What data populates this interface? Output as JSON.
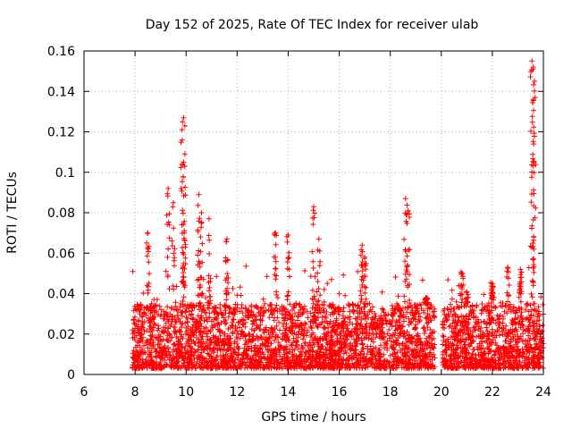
{
  "chart_data": {
    "type": "scatter",
    "title": "Day 152 of 2025, Rate Of TEC Index for receiver ulab",
    "xlabel": "GPS time / hours",
    "ylabel": "ROTI / TECUs",
    "xlim": [
      6,
      24
    ],
    "ylim": [
      0,
      0.16
    ],
    "xticks": [
      "6",
      "8",
      "10",
      "12",
      "14",
      "16",
      "18",
      "20",
      "22",
      "24"
    ],
    "yticks": [
      "0",
      "0.02",
      "0.04",
      "0.06",
      "0.08",
      "0.1",
      "0.12",
      "0.14",
      "0.16"
    ],
    "grid": true,
    "marker": "+",
    "color": "#ff0000",
    "series": [
      {
        "name": "ROTI",
        "data_range": [
          7.9,
          24.0
        ],
        "base_band": [
          0.003,
          0.035
        ],
        "peaks": [
          [
            8.5,
            0.07
          ],
          [
            9.3,
            0.092
          ],
          [
            9.5,
            0.085
          ],
          [
            9.9,
            0.127
          ],
          [
            9.95,
            0.123
          ],
          [
            9.85,
            0.116
          ],
          [
            9.9,
            0.105
          ],
          [
            10.5,
            0.089
          ],
          [
            10.6,
            0.08
          ],
          [
            10.9,
            0.077
          ],
          [
            11.6,
            0.067
          ],
          [
            13.5,
            0.07
          ],
          [
            14.0,
            0.069
          ],
          [
            15.0,
            0.083
          ],
          [
            15.2,
            0.067
          ],
          [
            16.9,
            0.064
          ],
          [
            17.0,
            0.058
          ],
          [
            18.6,
            0.087
          ],
          [
            18.7,
            0.081
          ],
          [
            19.4,
            0.038
          ],
          [
            20.8,
            0.05
          ],
          [
            21.0,
            0.041
          ],
          [
            22.0,
            0.045
          ],
          [
            22.6,
            0.053
          ],
          [
            23.1,
            0.052
          ],
          [
            23.55,
            0.155
          ],
          [
            23.6,
            0.152
          ],
          [
            23.65,
            0.145
          ],
          [
            23.6,
            0.136
          ]
        ]
      }
    ]
  }
}
